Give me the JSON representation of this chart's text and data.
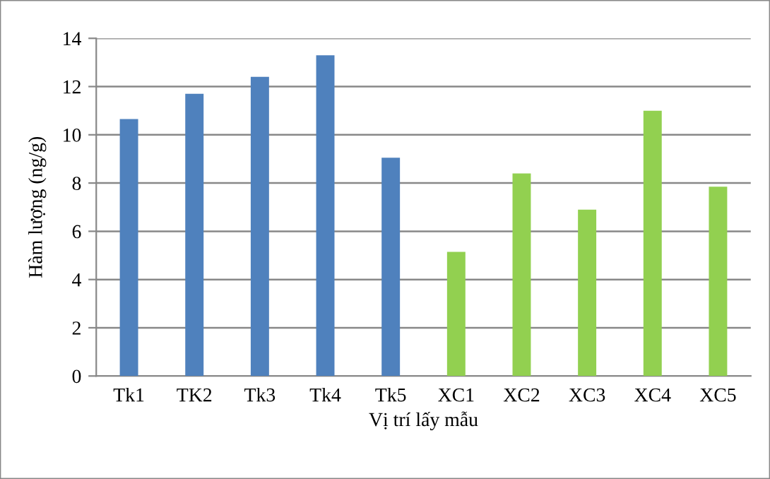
{
  "chart_data": {
    "type": "bar",
    "categories": [
      "Tk1",
      "TK2",
      "Tk3",
      "Tk4",
      "Tk5",
      "XC1",
      "XC2",
      "XC3",
      "XC4",
      "XC5"
    ],
    "values": [
      10.65,
      11.7,
      12.4,
      13.3,
      9.05,
      5.15,
      8.4,
      6.9,
      11.0,
      7.85
    ],
    "colors": [
      "#4f81bd",
      "#4f81bd",
      "#4f81bd",
      "#4f81bd",
      "#4f81bd",
      "#92d050",
      "#92d050",
      "#92d050",
      "#92d050",
      "#92d050"
    ],
    "xlabel": "Vị trí lấy mẫu",
    "ylabel": "Hàm lượng (ng/g)",
    "ylim": [
      0,
      14
    ],
    "yticks": [
      0,
      2,
      4,
      6,
      8,
      10,
      12,
      14
    ],
    "grid": "y"
  }
}
